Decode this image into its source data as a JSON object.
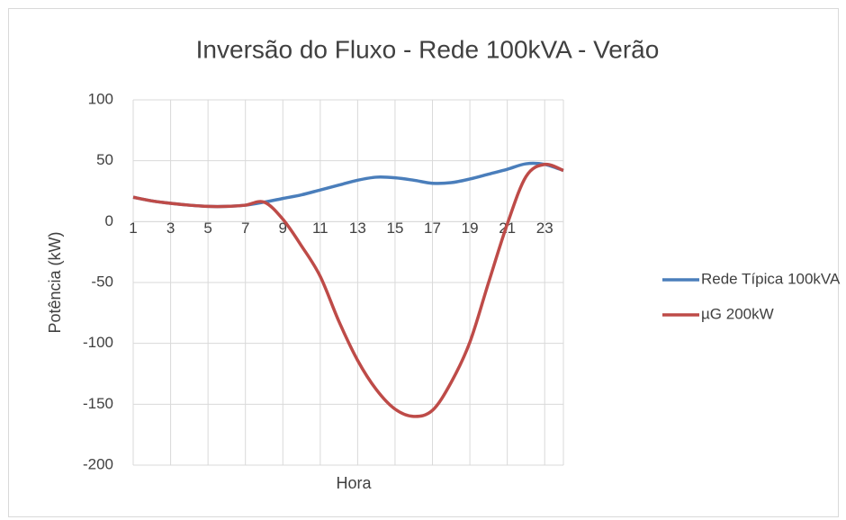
{
  "chart_data": {
    "type": "line",
    "title": "Inversão do Fluxo - Rede 100kVA - Verão",
    "x_label": "Hora",
    "y_label": "Potência (kW)",
    "categories": [
      1,
      null,
      3,
      null,
      5,
      null,
      7,
      null,
      9,
      null,
      11,
      null,
      13,
      null,
      15,
      null,
      17,
      null,
      19,
      null,
      21,
      null,
      23,
      null
    ],
    "series": [
      {
        "name": "Rede Típica 100kVA",
        "color": "#4a7ebb",
        "values": [
          20,
          17,
          15,
          13.5,
          12.5,
          12.5,
          13.5,
          16,
          19,
          22,
          26,
          30,
          34,
          36.5,
          36,
          34,
          31.5,
          32,
          35,
          39,
          43,
          47.5,
          47,
          42
        ]
      },
      {
        "name": "µG 200kW",
        "color": "#be4b48",
        "values": [
          20,
          17,
          15,
          13.5,
          12.5,
          12.5,
          13.5,
          16,
          2,
          -20,
          -45,
          -82,
          -114,
          -138,
          -154,
          -160,
          -155,
          -132,
          -99,
          -50,
          -2,
          37,
          47,
          42
        ]
      }
    ],
    "ylim": [
      -200,
      100
    ],
    "yticks": [
      -200,
      -150,
      -100,
      -50,
      0,
      50,
      100
    ],
    "grid": true,
    "legend": "right"
  }
}
